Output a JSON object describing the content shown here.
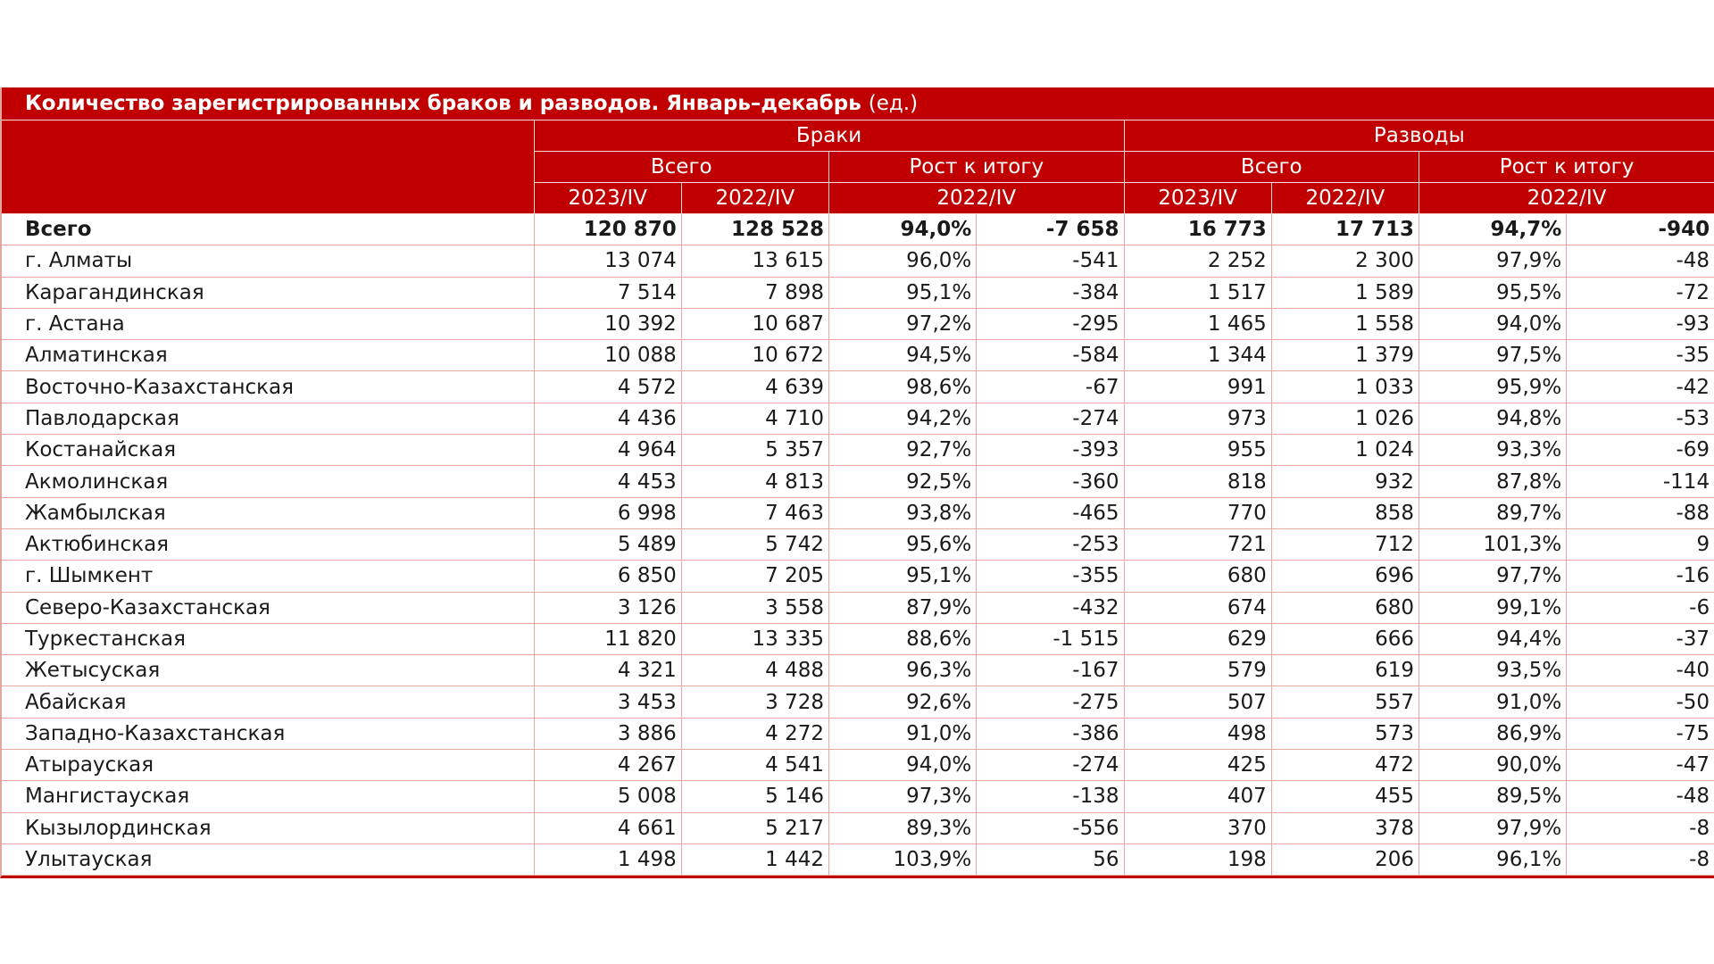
{
  "title": "Количество зарегистрированных браков и разводов. Январь–декабрь",
  "unit": "(ед.)",
  "groups": {
    "marriages": "Браки",
    "divorces": "Разводы"
  },
  "subgroups": {
    "total": "Всего",
    "growth": "Рост к итогу"
  },
  "periods": {
    "current": "2023/IV",
    "previous": "2022/IV"
  },
  "rows": [
    {
      "region": "Всего",
      "m_2023": "120 870",
      "m_2022": "128 528",
      "m_pct": "94,0%",
      "m_diff": "-7 658",
      "d_2023": "16 773",
      "d_2022": "17 713",
      "d_pct": "94,7%",
      "d_diff": "-940"
    },
    {
      "region": "г. Алматы",
      "m_2023": "13 074",
      "m_2022": "13 615",
      "m_pct": "96,0%",
      "m_diff": "-541",
      "d_2023": "2 252",
      "d_2022": "2 300",
      "d_pct": "97,9%",
      "d_diff": "-48"
    },
    {
      "region": "Карагандинская",
      "m_2023": "7 514",
      "m_2022": "7 898",
      "m_pct": "95,1%",
      "m_diff": "-384",
      "d_2023": "1 517",
      "d_2022": "1 589",
      "d_pct": "95,5%",
      "d_diff": "-72"
    },
    {
      "region": "г. Астана",
      "m_2023": "10 392",
      "m_2022": "10 687",
      "m_pct": "97,2%",
      "m_diff": "-295",
      "d_2023": "1 465",
      "d_2022": "1 558",
      "d_pct": "94,0%",
      "d_diff": "-93"
    },
    {
      "region": "Алматинская",
      "m_2023": "10 088",
      "m_2022": "10 672",
      "m_pct": "94,5%",
      "m_diff": "-584",
      "d_2023": "1 344",
      "d_2022": "1 379",
      "d_pct": "97,5%",
      "d_diff": "-35"
    },
    {
      "region": "Восточно-Казахстанская",
      "m_2023": "4 572",
      "m_2022": "4 639",
      "m_pct": "98,6%",
      "m_diff": "-67",
      "d_2023": "991",
      "d_2022": "1 033",
      "d_pct": "95,9%",
      "d_diff": "-42"
    },
    {
      "region": "Павлодарская",
      "m_2023": "4 436",
      "m_2022": "4 710",
      "m_pct": "94,2%",
      "m_diff": "-274",
      "d_2023": "973",
      "d_2022": "1 026",
      "d_pct": "94,8%",
      "d_diff": "-53"
    },
    {
      "region": "Костанайская",
      "m_2023": "4 964",
      "m_2022": "5 357",
      "m_pct": "92,7%",
      "m_diff": "-393",
      "d_2023": "955",
      "d_2022": "1 024",
      "d_pct": "93,3%",
      "d_diff": "-69"
    },
    {
      "region": "Акмолинская",
      "m_2023": "4 453",
      "m_2022": "4 813",
      "m_pct": "92,5%",
      "m_diff": "-360",
      "d_2023": "818",
      "d_2022": "932",
      "d_pct": "87,8%",
      "d_diff": "-114"
    },
    {
      "region": "Жамбылская",
      "m_2023": "6 998",
      "m_2022": "7 463",
      "m_pct": "93,8%",
      "m_diff": "-465",
      "d_2023": "770",
      "d_2022": "858",
      "d_pct": "89,7%",
      "d_diff": "-88"
    },
    {
      "region": "Актюбинская",
      "m_2023": "5 489",
      "m_2022": "5 742",
      "m_pct": "95,6%",
      "m_diff": "-253",
      "d_2023": "721",
      "d_2022": "712",
      "d_pct": "101,3%",
      "d_diff": "9"
    },
    {
      "region": "г. Шымкент",
      "m_2023": "6 850",
      "m_2022": "7 205",
      "m_pct": "95,1%",
      "m_diff": "-355",
      "d_2023": "680",
      "d_2022": "696",
      "d_pct": "97,7%",
      "d_diff": "-16"
    },
    {
      "region": "Северо-Казахстанская",
      "m_2023": "3 126",
      "m_2022": "3 558",
      "m_pct": "87,9%",
      "m_diff": "-432",
      "d_2023": "674",
      "d_2022": "680",
      "d_pct": "99,1%",
      "d_diff": "-6"
    },
    {
      "region": "Туркестанская",
      "m_2023": "11 820",
      "m_2022": "13 335",
      "m_pct": "88,6%",
      "m_diff": "-1 515",
      "d_2023": "629",
      "d_2022": "666",
      "d_pct": "94,4%",
      "d_diff": "-37"
    },
    {
      "region": "Жетысуская",
      "m_2023": "4 321",
      "m_2022": "4 488",
      "m_pct": "96,3%",
      "m_diff": "-167",
      "d_2023": "579",
      "d_2022": "619",
      "d_pct": "93,5%",
      "d_diff": "-40"
    },
    {
      "region": "Абайская",
      "m_2023": "3 453",
      "m_2022": "3 728",
      "m_pct": "92,6%",
      "m_diff": "-275",
      "d_2023": "507",
      "d_2022": "557",
      "d_pct": "91,0%",
      "d_diff": "-50"
    },
    {
      "region": "Западно-Казахстанская",
      "m_2023": "3 886",
      "m_2022": "4 272",
      "m_pct": "91,0%",
      "m_diff": "-386",
      "d_2023": "498",
      "d_2022": "573",
      "d_pct": "86,9%",
      "d_diff": "-75"
    },
    {
      "region": "Атырауская",
      "m_2023": "4 267",
      "m_2022": "4 541",
      "m_pct": "94,0%",
      "m_diff": "-274",
      "d_2023": "425",
      "d_2022": "472",
      "d_pct": "90,0%",
      "d_diff": "-47"
    },
    {
      "region": "Мангистауская",
      "m_2023": "5 008",
      "m_2022": "5 146",
      "m_pct": "97,3%",
      "m_diff": "-138",
      "d_2023": "407",
      "d_2022": "455",
      "d_pct": "89,5%",
      "d_diff": "-48"
    },
    {
      "region": "Кызылординская",
      "m_2023": "4 661",
      "m_2022": "5 217",
      "m_pct": "89,3%",
      "m_diff": "-556",
      "d_2023": "370",
      "d_2022": "378",
      "d_pct": "97,9%",
      "d_diff": "-8"
    },
    {
      "region": "Улытауская",
      "m_2023": "1 498",
      "m_2022": "1 442",
      "m_pct": "103,9%",
      "m_diff": "56",
      "d_2023": "198",
      "d_2022": "206",
      "d_pct": "96,1%",
      "d_diff": "-8"
    }
  ]
}
